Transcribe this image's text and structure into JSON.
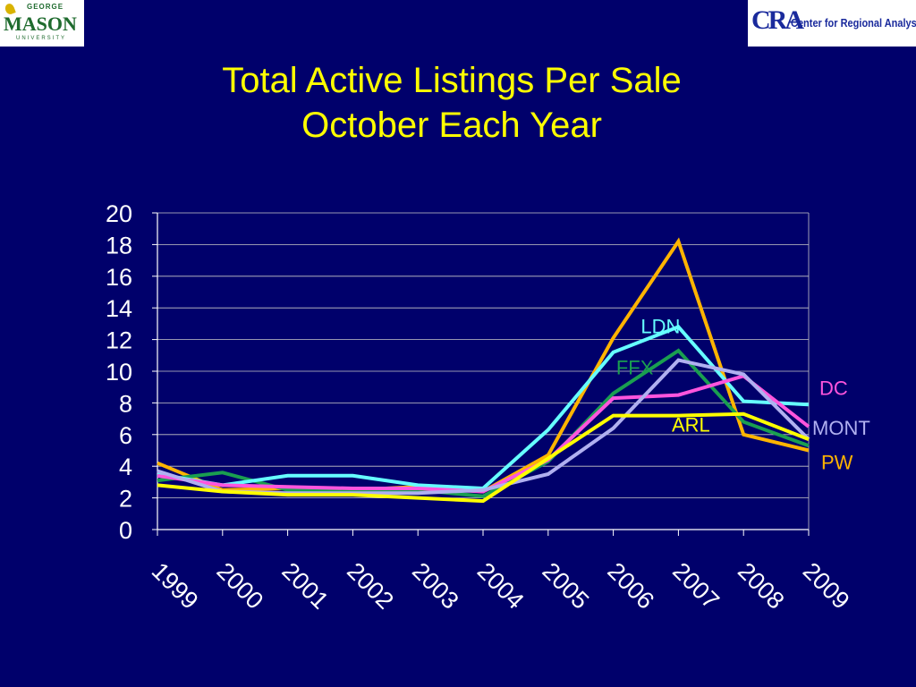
{
  "logos": {
    "left": {
      "top": "GEORGE",
      "main": "MASON",
      "bottom": "UNIVERSITY"
    },
    "right": {
      "mark": "CRA",
      "text": "Center for Regional Analysis"
    }
  },
  "title_lines": [
    "Total Active Listings Per Sale",
    "October Each Year"
  ],
  "chart_data": {
    "type": "line",
    "title": "Total Active Listings Per Sale October Each Year",
    "xlabel": "",
    "ylabel": "",
    "ylim": [
      0,
      20
    ],
    "yticks": [
      0,
      2,
      4,
      6,
      8,
      10,
      12,
      14,
      16,
      18,
      20
    ],
    "categories": [
      "1999",
      "2000",
      "2001",
      "2002",
      "2003",
      "2004",
      "2005",
      "2006",
      "2007",
      "2008",
      "2009"
    ],
    "grid": true,
    "series": [
      {
        "name": "PW",
        "color": "#ffb400",
        "values": [
          4.2,
          2.5,
          2.6,
          2.5,
          2.7,
          2.4,
          4.7,
          12.1,
          18.2,
          6.0,
          5.0
        ]
      },
      {
        "name": "FFX",
        "color": "#1a9e50",
        "values": [
          3.1,
          3.6,
          2.5,
          2.5,
          2.5,
          2.1,
          4.3,
          8.6,
          11.3,
          6.8,
          5.3
        ]
      },
      {
        "name": "LDN",
        "color": "#66ffff",
        "values": [
          3.5,
          2.8,
          3.4,
          3.4,
          2.8,
          2.6,
          6.3,
          11.2,
          12.8,
          8.1,
          7.9
        ]
      },
      {
        "name": "DC",
        "color": "#ff55dd",
        "values": [
          3.4,
          2.8,
          2.7,
          2.6,
          2.6,
          2.4,
          4.4,
          8.3,
          8.5,
          9.7,
          6.5
        ]
      },
      {
        "name": "MONT",
        "color": "#b0b0f0",
        "values": [
          3.7,
          2.4,
          2.3,
          2.3,
          2.3,
          2.5,
          3.5,
          6.4,
          10.7,
          9.8,
          5.7
        ]
      },
      {
        "name": "ARL",
        "color": "#ffff00",
        "values": [
          2.8,
          2.4,
          2.2,
          2.2,
          2.0,
          1.8,
          4.5,
          7.2,
          7.2,
          7.3,
          5.7
        ]
      }
    ],
    "annotations": [
      {
        "text": "LDN",
        "color": "#66ffff",
        "anchor": {
          "category": "2007",
          "y": 12.4
        },
        "align": "center",
        "dx": -20
      },
      {
        "text": "FFX",
        "color": "#1a9e50",
        "anchor": {
          "category": "2006",
          "y": 9.8
        },
        "align": "center",
        "dx": 24
      },
      {
        "text": "ARL",
        "color": "#ffff00",
        "anchor": {
          "category": "2007",
          "y": 6.2
        },
        "align": "center",
        "dx": 14
      },
      {
        "text": "DC",
        "color": "#ff55dd",
        "anchor": {
          "category": "2009",
          "y": 8.5
        },
        "align": "left",
        "dx": 12
      },
      {
        "text": "MONT",
        "color": "#b0b0f0",
        "anchor": {
          "category": "2009",
          "y": 6.0
        },
        "align": "left",
        "dx": 4
      },
      {
        "text": "PW",
        "color": "#ffb400",
        "anchor": {
          "category": "2009",
          "y": 3.8
        },
        "align": "left",
        "dx": 14
      }
    ]
  }
}
